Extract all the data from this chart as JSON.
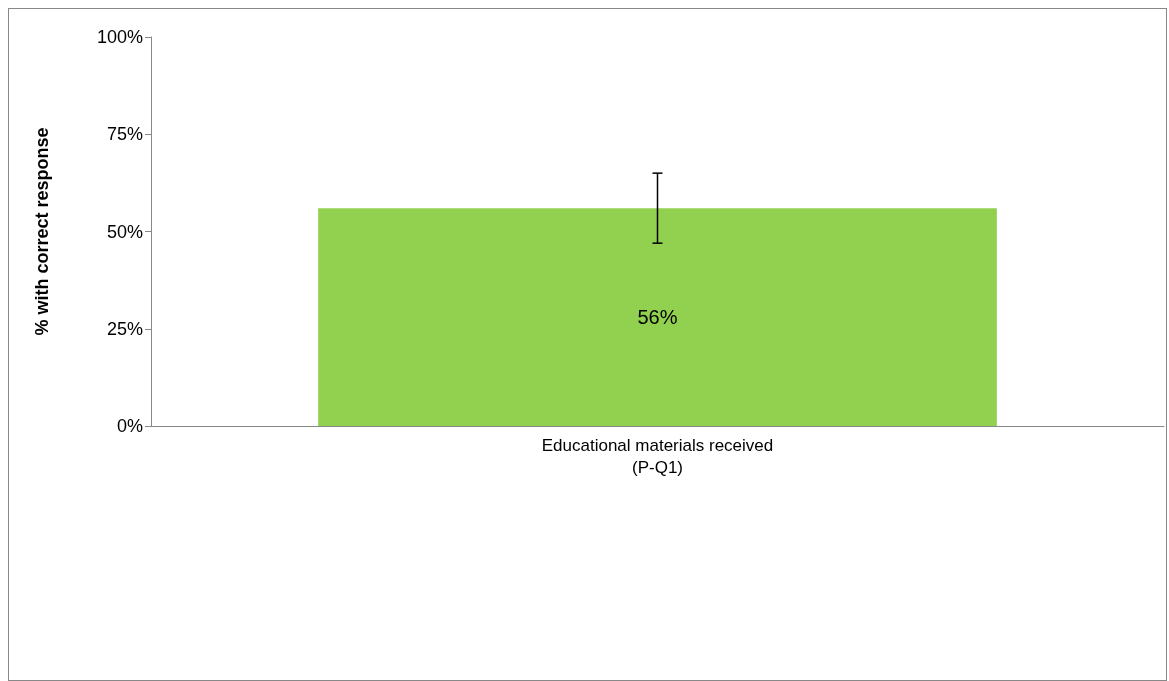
{
  "chart_data": {
    "type": "bar",
    "ylabel": "% with correct response",
    "categories": [
      "Educational materials received\n(P-Q1)"
    ],
    "values": [
      56
    ],
    "color": "#92d050",
    "errors": [
      [
        47,
        65
      ]
    ],
    "value_labels": [
      "56%"
    ],
    "ylim": [
      0,
      100
    ],
    "yticks": [
      {
        "value": 0,
        "label": "0%"
      },
      {
        "value": 25,
        "label": "25%"
      },
      {
        "value": 50,
        "label": "50%"
      },
      {
        "value": 75,
        "label": "75%"
      },
      {
        "value": 100,
        "label": "100%"
      }
    ],
    "grid": false
  }
}
